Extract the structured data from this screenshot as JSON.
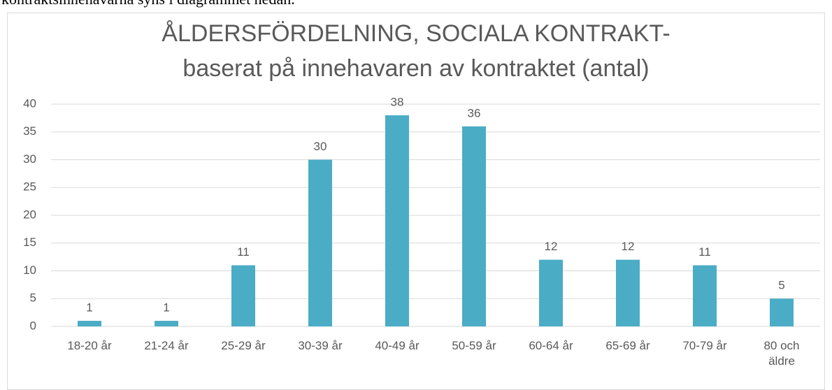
{
  "text_above": "kontraktsinnehavarna syns i diagrammet nedan.",
  "chart_data": {
    "type": "bar",
    "title": "ÅLDERSFÖRDELNING, SOCIALA KONTRAKT-",
    "subtitle": "baserat på innehavaren av kontraktet (antal)",
    "categories": [
      "18-20 år",
      "21-24 år",
      "25-29 år",
      "30-39 år",
      "40-49 år",
      "50-59 år",
      "60-64 år",
      "65-69 år",
      "70-79 år",
      "80 och äldre"
    ],
    "values": [
      1,
      1,
      11,
      30,
      38,
      36,
      12,
      12,
      11,
      5
    ],
    "color": "#4bacc6",
    "ylim": [
      0,
      40
    ],
    "yticks": [
      0,
      5,
      10,
      15,
      20,
      25,
      30,
      35,
      40
    ],
    "grid": true
  }
}
